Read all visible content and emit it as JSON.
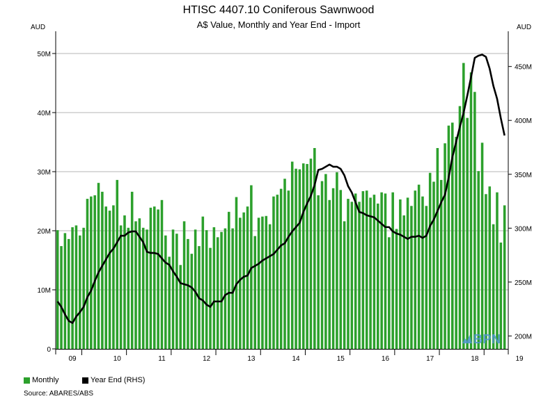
{
  "chart_data": {
    "type": "bar+line",
    "title": "HTISC 4407.10 Coniferous Sawnwood",
    "subtitle": "A$ Value, Monthly and Year End - Import",
    "left_axis_unit": "AUD",
    "right_axis_unit": "AUD",
    "left_ylim": [
      0,
      52000000
    ],
    "right_ylim": [
      188000000,
      473000000
    ],
    "left_ticks": [
      {
        "value": 0,
        "label": "0"
      },
      {
        "value": 10000000,
        "label": "10M"
      },
      {
        "value": 20000000,
        "label": "20M"
      },
      {
        "value": 30000000,
        "label": "30M"
      },
      {
        "value": 40000000,
        "label": "40M"
      },
      {
        "value": 50000000,
        "label": "50M"
      }
    ],
    "right_ticks": [
      {
        "value": 200000000,
        "label": "200M"
      },
      {
        "value": 250000000,
        "label": "250M"
      },
      {
        "value": 300000000,
        "label": "300M"
      },
      {
        "value": 350000000,
        "label": "350M"
      },
      {
        "value": 400000000,
        "label": "400M"
      },
      {
        "value": 450000000,
        "label": "450M"
      }
    ],
    "x_labels": [
      "09",
      "10",
      "11",
      "12",
      "13",
      "14",
      "15",
      "16",
      "17",
      "18",
      "19"
    ],
    "x_label_months": [
      4,
      16,
      28,
      40,
      52,
      64,
      76,
      88,
      100,
      112,
      124
    ],
    "x_year_boundaries": [
      7,
      19,
      31,
      43,
      55,
      67,
      79,
      91,
      103,
      115
    ],
    "series": [
      {
        "name": "Monthly",
        "axis": "left",
        "color": "#2ca02c",
        "values": [
          20.1,
          17.4,
          19.6,
          18.6,
          20.6,
          20.9,
          19.2,
          20.5,
          25.4,
          25.8,
          26.0,
          28.1,
          26.6,
          24.1,
          23.4,
          24.3,
          28.6,
          20.9,
          22.6,
          20.5,
          26.6,
          21.6,
          22.1,
          20.5,
          20.2,
          23.9,
          24.1,
          23.6,
          25.2,
          19.2,
          15.6,
          20.2,
          19.5,
          14.2,
          21.6,
          18.6,
          16.1,
          20.2,
          17.4,
          22.4,
          20.1,
          17.1,
          20.6,
          18.9,
          19.8,
          20.4,
          23.2,
          20.4,
          25.7,
          22.2,
          23.1,
          24.1,
          27.7,
          19.1,
          22.2,
          22.4,
          22.5,
          21.1,
          25.8,
          26.1,
          27.1,
          28.8,
          26.8,
          31.7,
          30.5,
          30.4,
          31.4,
          31.3,
          32.2,
          34.0,
          26.0,
          28.4,
          29.6,
          25.2,
          27.2,
          29.9,
          26.9,
          21.6,
          25.4,
          24.9,
          26.3,
          24.9,
          26.7,
          26.8,
          25.6,
          26.1,
          24.6,
          26.5,
          26.3,
          18.9,
          26.5,
          20.3,
          25.3,
          22.6,
          25.6,
          24.2,
          26.8,
          27.8,
          25.8,
          24.2,
          29.8,
          28.3,
          34.0,
          28.6,
          34.8,
          37.8,
          38.3,
          35.9,
          41.1,
          48.4,
          39.1,
          46.8,
          43.5,
          30.1,
          34.9,
          26.2,
          27.5,
          21.1,
          26.5,
          18.0,
          24.3
        ],
        "value_unit": "M AUD"
      },
      {
        "name": "Year End (RHS)",
        "axis": "right",
        "color": "#000000",
        "values": [
          232,
          227,
          220,
          214,
          212,
          218,
          222,
          227,
          236,
          242,
          251,
          259,
          265,
          271,
          277,
          281,
          287,
          293,
          293,
          296,
          297,
          297,
          292,
          287,
          278,
          277,
          277,
          276,
          272,
          268,
          266,
          260,
          255,
          249,
          248,
          247,
          245,
          241,
          235,
          233,
          229,
          227,
          232,
          232,
          232,
          238,
          240,
          240,
          248,
          252,
          255,
          256,
          263,
          265,
          267,
          270,
          272,
          274,
          276,
          280,
          284,
          286,
          292,
          297,
          301,
          305,
          315,
          323,
          330,
          340,
          354,
          355,
          357,
          359,
          357,
          357,
          355,
          349,
          339,
          333,
          324,
          315,
          314,
          312,
          311,
          310,
          307,
          304,
          301,
          301,
          297,
          295,
          294,
          292,
          290,
          292,
          292,
          293,
          291,
          293,
          302,
          308,
          316,
          324,
          331,
          347,
          366,
          380,
          394,
          407,
          423,
          440,
          458,
          460,
          461,
          459,
          448,
          432,
          420,
          402,
          386
        ],
        "value_unit": "M AUD"
      }
    ],
    "legend": [
      "Monthly",
      "Year End (RHS)"
    ],
    "legend_position": "bottom-left",
    "grid": "horizontal"
  },
  "source_text": "Source: ABARES/ABS",
  "watermark_text": "BPN"
}
